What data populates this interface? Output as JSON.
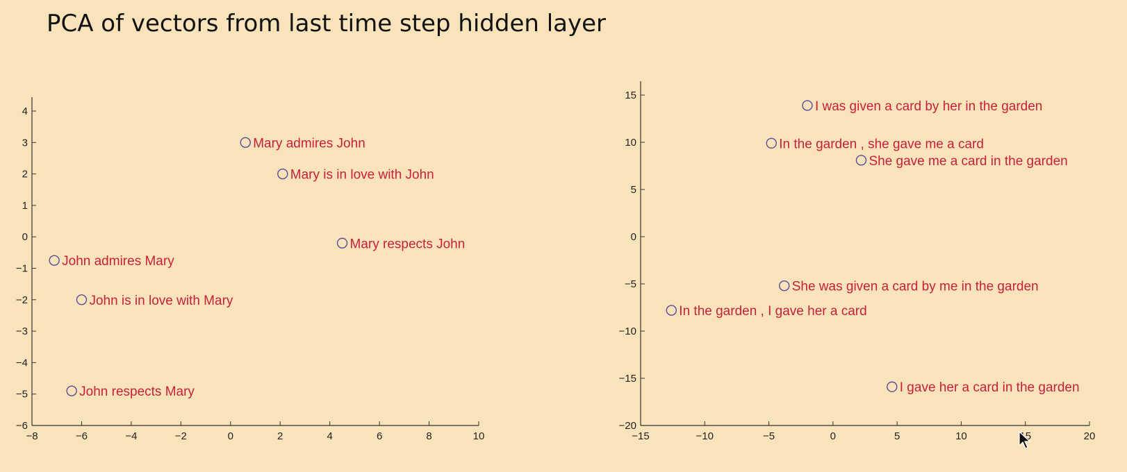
{
  "title": "PCA of vectors from last time step hidden layer",
  "chart_data": [
    {
      "type": "scatter",
      "xlim": [
        -8,
        10
      ],
      "ylim": [
        -6,
        4
      ],
      "xticks": [
        -8,
        -6,
        -4,
        -2,
        0,
        2,
        4,
        6,
        8,
        10
      ],
      "yticks": [
        -6,
        -5,
        -4,
        -3,
        -2,
        -1,
        0,
        1,
        2,
        3,
        4
      ],
      "xtick_labels": [
        "−8",
        "−6",
        "−4",
        "−2",
        "0",
        "2",
        "4",
        "6",
        "8",
        "10"
      ],
      "ytick_labels": [
        "−6",
        "−5",
        "−4",
        "−3",
        "−2",
        "−1",
        "0",
        "1",
        "2",
        "3",
        "4"
      ],
      "marker_color": "#5a4a9a",
      "label_color": "#c8203a",
      "points": [
        {
          "x": 0.6,
          "y": 3.0,
          "label": "Mary admires John"
        },
        {
          "x": 2.1,
          "y": 2.0,
          "label": "Mary is in love with John"
        },
        {
          "x": 4.5,
          "y": -0.2,
          "label": "Mary respects John"
        },
        {
          "x": -7.1,
          "y": -0.75,
          "label": "John admires Mary"
        },
        {
          "x": -6.0,
          "y": -2.0,
          "label": "John is in love with Mary"
        },
        {
          "x": -6.4,
          "y": -4.9,
          "label": "John respects Mary"
        }
      ]
    },
    {
      "type": "scatter",
      "xlim": [
        -15,
        20
      ],
      "ylim": [
        -20,
        15
      ],
      "xticks": [
        -15,
        -10,
        -5,
        0,
        5,
        10,
        15,
        20
      ],
      "yticks": [
        -20,
        -15,
        -10,
        -5,
        0,
        5,
        10,
        15
      ],
      "xtick_labels": [
        "−15",
        "−10",
        "−5",
        "0",
        "5",
        "10",
        "15",
        "20"
      ],
      "ytick_labels": [
        "−20",
        "−15",
        "−10",
        "−5",
        "0",
        "5",
        "10",
        "15"
      ],
      "marker_color": "#5a4a9a",
      "label_color": "#c8203a",
      "points": [
        {
          "x": -2.0,
          "y": 13.9,
          "label": "I was given a card by her in the garden"
        },
        {
          "x": -4.8,
          "y": 9.9,
          "label": "In the garden , she gave me a card"
        },
        {
          "x": 2.2,
          "y": 8.1,
          "label": "She gave me a card in the garden"
        },
        {
          "x": -3.8,
          "y": -5.2,
          "label": "She was given a card by me in the garden"
        },
        {
          "x": -12.6,
          "y": -7.8,
          "label": "In the garden , I gave her a card"
        },
        {
          "x": 4.6,
          "y": -15.9,
          "label": "I gave her a card in the garden"
        }
      ]
    }
  ]
}
